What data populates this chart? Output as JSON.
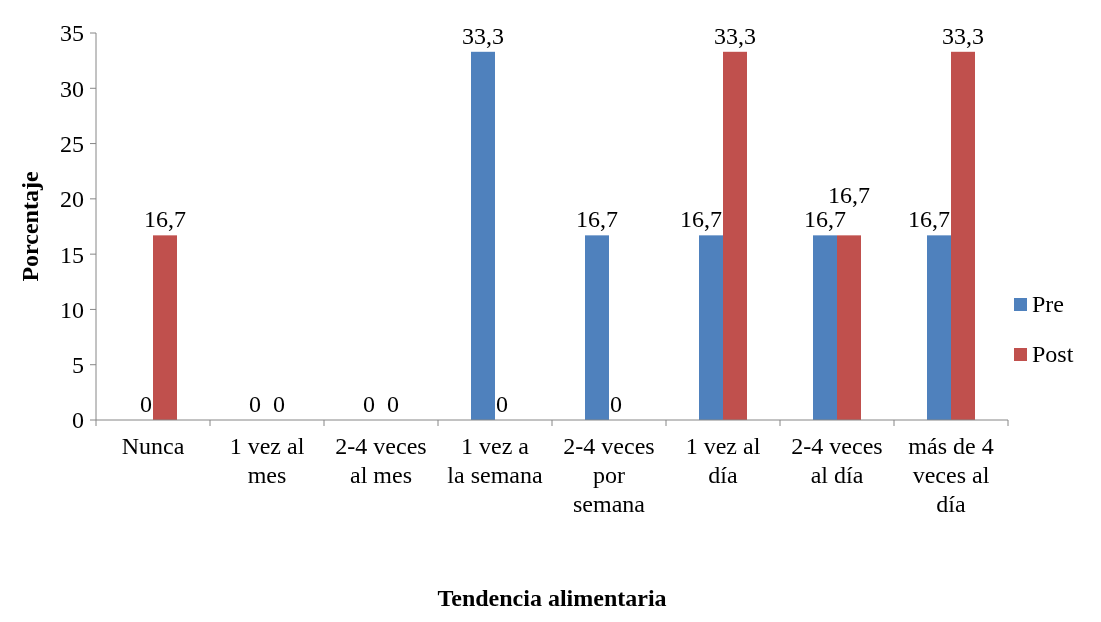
{
  "chart_data": {
    "type": "bar",
    "xlabel": "Tendencia alimentaria",
    "ylabel": "Porcentaje",
    "categories": [
      "Nunca",
      "1 vez al mes",
      "2-4 veces al mes",
      "1 vez a la semana",
      "2-4 veces por semana",
      "1 vez al día",
      "2-4 veces al día",
      "más de 4 veces al día"
    ],
    "series": [
      {
        "name": "Pre",
        "color": "#4f81bd",
        "values": [
          0,
          0,
          0,
          33.3,
          16.7,
          16.7,
          16.7,
          16.7
        ],
        "value_labels": [
          "0",
          "0",
          "0",
          "33,3",
          "16,7",
          "16,7",
          "16,7",
          "16,7"
        ]
      },
      {
        "name": "Post",
        "color": "#c0504d",
        "values": [
          16.7,
          0,
          0,
          0,
          0,
          33.3,
          16.7,
          33.3
        ],
        "value_labels": [
          "16,7",
          "0",
          "0",
          "0",
          "0",
          "33,3",
          "16,7",
          "33,3"
        ]
      }
    ],
    "ylim": [
      0,
      35
    ],
    "yticks": [
      0,
      5,
      10,
      15,
      20,
      25,
      30,
      35
    ],
    "grid": false,
    "legend": "right"
  }
}
